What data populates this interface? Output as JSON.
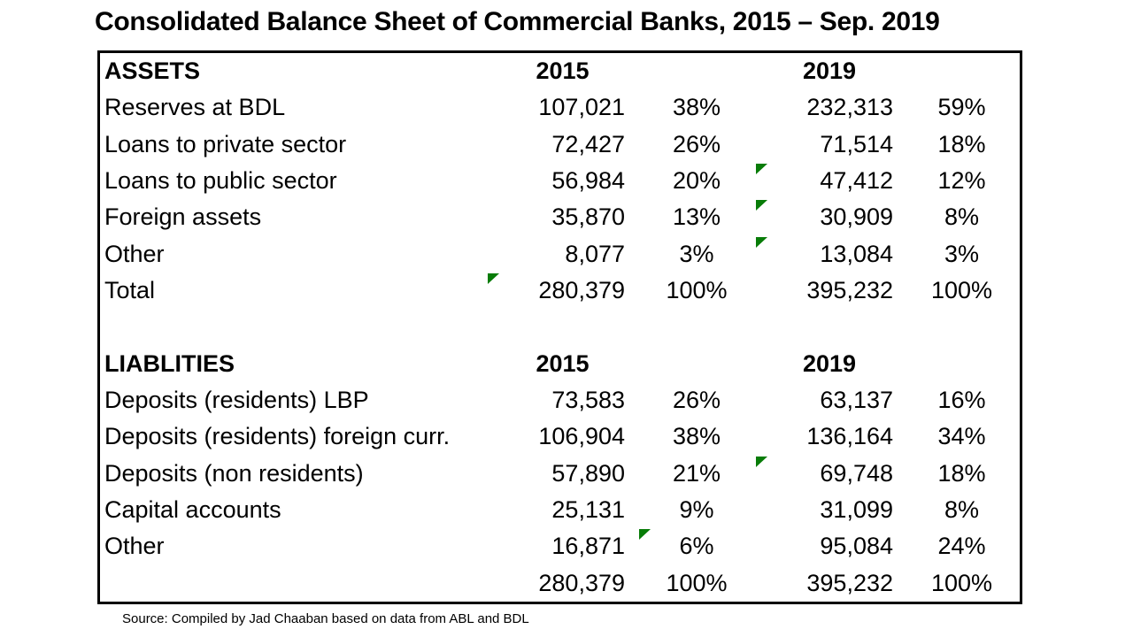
{
  "page": {
    "title": "Consolidated Balance Sheet of Commercial Banks, 2015 – Sep. 2019",
    "source_note": "Source: Compiled by Jad Chaaban based on data from ABL and BDL"
  },
  "colors": {
    "background": "#ffffff",
    "text": "#000000",
    "table_border": "#000000",
    "flag_green": "#087c08"
  },
  "table": {
    "sections": [
      {
        "header": {
          "label": "ASSETS",
          "col2015": "2015",
          "col2019": "2019"
        },
        "rows": [
          {
            "label": "Reserves at BDL",
            "v2015": "107,021",
            "p2015": "38%",
            "v2019": "232,313",
            "p2019": "59%",
            "flags": []
          },
          {
            "label": "Loans to private sector",
            "v2015": "72,427",
            "p2015": "26%",
            "v2019": "71,514",
            "p2019": "18%",
            "flags": []
          },
          {
            "label": "Loans to public sector",
            "v2015": "56,984",
            "p2015": "20%",
            "v2019": "47,412",
            "p2019": "12%",
            "flags": [
              "v2019"
            ]
          },
          {
            "label": "Foreign assets",
            "v2015": "35,870",
            "p2015": "13%",
            "v2019": "30,909",
            "p2019": "8%",
            "flags": [
              "v2019"
            ]
          },
          {
            "label": "Other",
            "v2015": "8,077",
            "p2015": "3%",
            "v2019": "13,084",
            "p2019": "3%",
            "flags": [
              "v2019"
            ]
          },
          {
            "label": "Total",
            "v2015": "280,379",
            "p2015": "100%",
            "v2019": "395,232",
            "p2019": "100%",
            "flags": [
              "v2015"
            ]
          }
        ]
      },
      {
        "header": {
          "label": "LIABLITIES",
          "col2015": "2015",
          "col2019": "2019"
        },
        "rows": [
          {
            "label": "Deposits (residents) LBP",
            "v2015": "73,583",
            "p2015": "26%",
            "v2019": "63,137",
            "p2019": "16%",
            "flags": []
          },
          {
            "label": "Deposits (residents) foreign curr.",
            "v2015": "106,904",
            "p2015": "38%",
            "v2019": "136,164",
            "p2019": "34%",
            "flags": []
          },
          {
            "label": "Deposits (non residents)",
            "v2015": "57,890",
            "p2015": "21%",
            "v2019": "69,748",
            "p2019": "18%",
            "flags": [
              "v2019"
            ]
          },
          {
            "label": "Capital accounts",
            "v2015": "25,131",
            "p2015": "9%",
            "v2019": "31,099",
            "p2019": "8%",
            "flags": []
          },
          {
            "label": "Other",
            "v2015": "16,871",
            "p2015": "6%",
            "v2019": "95,084",
            "p2019": "24%",
            "flags": [
              "p2015"
            ]
          },
          {
            "label": "",
            "v2015": "280,379",
            "p2015": "100%",
            "v2019": "395,232",
            "p2019": "100%",
            "flags": []
          }
        ]
      }
    ]
  }
}
